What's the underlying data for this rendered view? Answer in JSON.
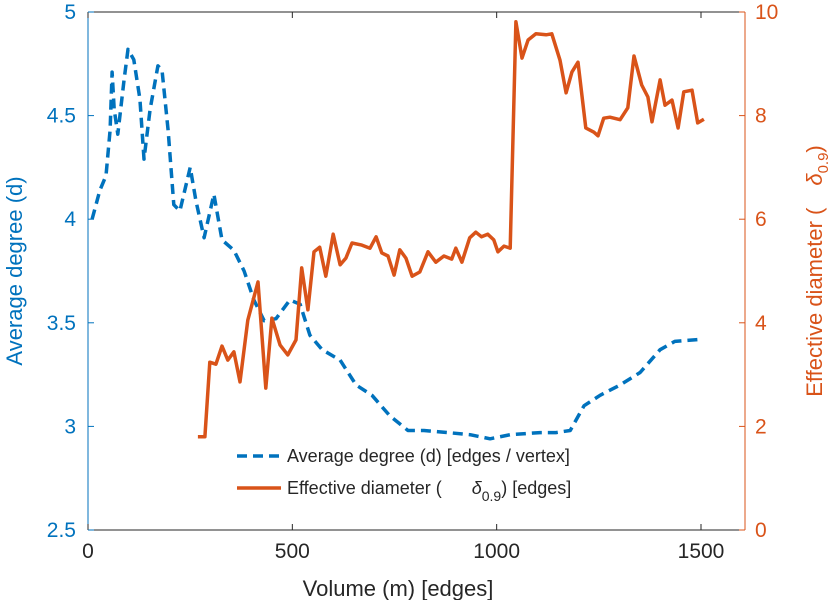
{
  "chart_data": {
    "type": "line",
    "xlabel": "Volume (m) [edges]",
    "ylabel_left": "Average degree (d)",
    "ylabel_right_prefix": "Effective diameter (",
    "ylabel_right_symbol": "δ",
    "ylabel_right_sub": "0.9",
    "ylabel_right_suffix": ")",
    "xlim": [
      0,
      1600
    ],
    "ylim_left": [
      2.5,
      5
    ],
    "ylim_right": [
      0,
      10
    ],
    "xticks": [
      "0",
      "500",
      "1000",
      "1500"
    ],
    "xtick_values": [
      0,
      500,
      1000,
      1500
    ],
    "yticks_left": [
      "2.5",
      "3",
      "3.5",
      "4",
      "4.5",
      "5"
    ],
    "ytick_values_left": [
      2.5,
      3,
      3.5,
      4,
      4.5,
      5
    ],
    "yticks_right": [
      "0",
      "2",
      "4",
      "6",
      "8",
      "10"
    ],
    "ytick_values_right": [
      0,
      2,
      4,
      6,
      8,
      10
    ],
    "colors": {
      "left": "#0072BD",
      "right": "#D95319"
    },
    "legend_position": "bottom-center",
    "series": [
      {
        "name": "Average degree (d) [edges / vertex]",
        "axis": "left",
        "style": "dashed",
        "x": [
          10,
          29,
          44,
          54,
          59,
          64,
          73,
          88,
          98,
          112,
          127,
          137,
          152,
          171,
          181,
          196,
          210,
          225,
          250,
          264,
          284,
          308,
          328,
          357,
          382,
          406,
          431,
          460,
          494,
          519,
          543,
          573,
          617,
          656,
          695,
          739,
          783,
          822,
          881,
          935,
          984,
          1033,
          1106,
          1145,
          1180,
          1214,
          1253,
          1302,
          1351,
          1400,
          1436,
          1497
        ],
        "y": [
          4.0,
          4.14,
          4.21,
          4.43,
          4.71,
          4.53,
          4.41,
          4.67,
          4.82,
          4.77,
          4.58,
          4.29,
          4.53,
          4.74,
          4.72,
          4.43,
          4.07,
          4.04,
          4.25,
          4.09,
          3.91,
          4.12,
          3.9,
          3.85,
          3.75,
          3.61,
          3.51,
          3.52,
          3.61,
          3.59,
          3.44,
          3.37,
          3.32,
          3.2,
          3.15,
          3.05,
          2.98,
          2.98,
          2.97,
          2.96,
          2.94,
          2.96,
          2.97,
          2.97,
          2.98,
          3.1,
          3.15,
          3.2,
          3.26,
          3.37,
          3.41,
          3.42
        ]
      },
      {
        "name_prefix": "Effective diameter (",
        "name_symbol": "δ",
        "name_sub": "0.9",
        "name_suffix": ") [edges]",
        "axis": "right",
        "style": "solid",
        "x": [
          269,
          286,
          298,
          313,
          328,
          342,
          357,
          372,
          391,
          416,
          435,
          450,
          470,
          489,
          509,
          523,
          538,
          553,
          567,
          582,
          600,
          617,
          631,
          646,
          670,
          690,
          705,
          719,
          734,
          749,
          763,
          778,
          793,
          812,
          832,
          851,
          871,
          890,
          900,
          915,
          934,
          949,
          963,
          978,
          993,
          1003,
          1018,
          1033,
          1047,
          1062,
          1077,
          1096,
          1121,
          1135,
          1155,
          1170,
          1184,
          1199,
          1218,
          1238,
          1248,
          1262,
          1277,
          1302,
          1321,
          1336,
          1355,
          1370,
          1380,
          1400,
          1412,
          1429,
          1444,
          1458,
          1478,
          1492,
          1507
        ],
        "y": [
          1.8,
          1.8,
          3.24,
          3.2,
          3.55,
          3.28,
          3.44,
          2.86,
          4.05,
          4.79,
          2.74,
          4.09,
          3.57,
          3.38,
          3.67,
          5.06,
          4.25,
          5.37,
          5.46,
          4.9,
          5.71,
          5.12,
          5.25,
          5.54,
          5.5,
          5.44,
          5.66,
          5.35,
          5.29,
          4.92,
          5.41,
          5.25,
          4.9,
          4.98,
          5.37,
          5.17,
          5.29,
          5.23,
          5.44,
          5.17,
          5.64,
          5.75,
          5.66,
          5.71,
          5.6,
          5.37,
          5.48,
          5.44,
          9.81,
          9.11,
          9.46,
          9.58,
          9.56,
          9.58,
          9.07,
          8.44,
          8.84,
          9.03,
          7.76,
          7.68,
          7.61,
          7.95,
          7.97,
          7.92,
          8.15,
          9.15,
          8.59,
          8.36,
          7.88,
          8.69,
          8.2,
          8.3,
          7.76,
          8.46,
          8.49,
          7.86,
          7.93
        ]
      }
    ]
  }
}
